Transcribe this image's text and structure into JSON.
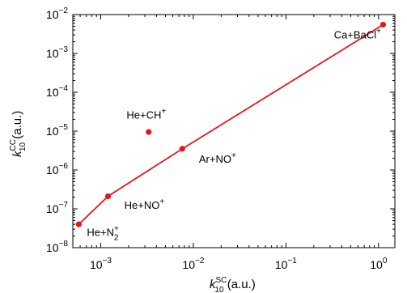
{
  "chart_data": {
    "type": "scatter",
    "xscale": "log",
    "yscale": "log",
    "xlim": [
      0.0005,
      1.5
    ],
    "ylim": [
      1e-08,
      0.01
    ],
    "xticks": [
      {
        "value": 0.001,
        "base": "10",
        "exp": "−3"
      },
      {
        "value": 0.01,
        "base": "10",
        "exp": "−2"
      },
      {
        "value": 0.1,
        "base": "10",
        "exp": "−1"
      },
      {
        "value": 1,
        "base": "10",
        "exp": "0"
      }
    ],
    "yticks": [
      {
        "value": 1e-08,
        "base": "10",
        "exp": "−8"
      },
      {
        "value": 1e-07,
        "base": "10",
        "exp": "−7"
      },
      {
        "value": 1e-06,
        "base": "10",
        "exp": "−6"
      },
      {
        "value": 1e-05,
        "base": "10",
        "exp": "−5"
      },
      {
        "value": 0.0001,
        "base": "10",
        "exp": "−4"
      },
      {
        "value": 0.001,
        "base": "10",
        "exp": "−3"
      },
      {
        "value": 0.01,
        "base": "10",
        "exp": "−2"
      }
    ],
    "xlabel": {
      "k": "k",
      "sup": "SC",
      "sub": "10",
      "unit": " (a.u.)"
    },
    "ylabel": {
      "k": "k",
      "sup": "CC",
      "sub": "10",
      "unit": " (a.u.)"
    },
    "color": "#e8141c",
    "line_points": [
      {
        "x": 0.00058,
        "y": 4e-08
      },
      {
        "x": 0.0012,
        "y": 2.1e-07
      },
      {
        "x": 0.0076,
        "y": 3.5e-06
      },
      {
        "x": 1.12,
        "y": 0.0055
      }
    ],
    "isolated_points": [
      {
        "x": 0.0033,
        "y": 9.5e-06
      }
    ],
    "annotations": [
      {
        "base": "Ca+BaCl",
        "sup": "+",
        "sub": "",
        "x": 0.33,
        "y": 0.0024
      },
      {
        "base": "He+CH",
        "sup": "+",
        "sub": "",
        "x": 0.0019,
        "y": 2.1e-05
      },
      {
        "base": "Ar+NO",
        "sup": "+",
        "sub": "",
        "x": 0.0115,
        "y": 1.55e-06
      },
      {
        "base": "He+NO",
        "sup": "+",
        "sub": "",
        "x": 0.0018,
        "y": 1e-07
      },
      {
        "base": "He+N",
        "sup": "+",
        "sub": "2",
        "x": 0.00071,
        "y": 2e-08
      }
    ]
  }
}
